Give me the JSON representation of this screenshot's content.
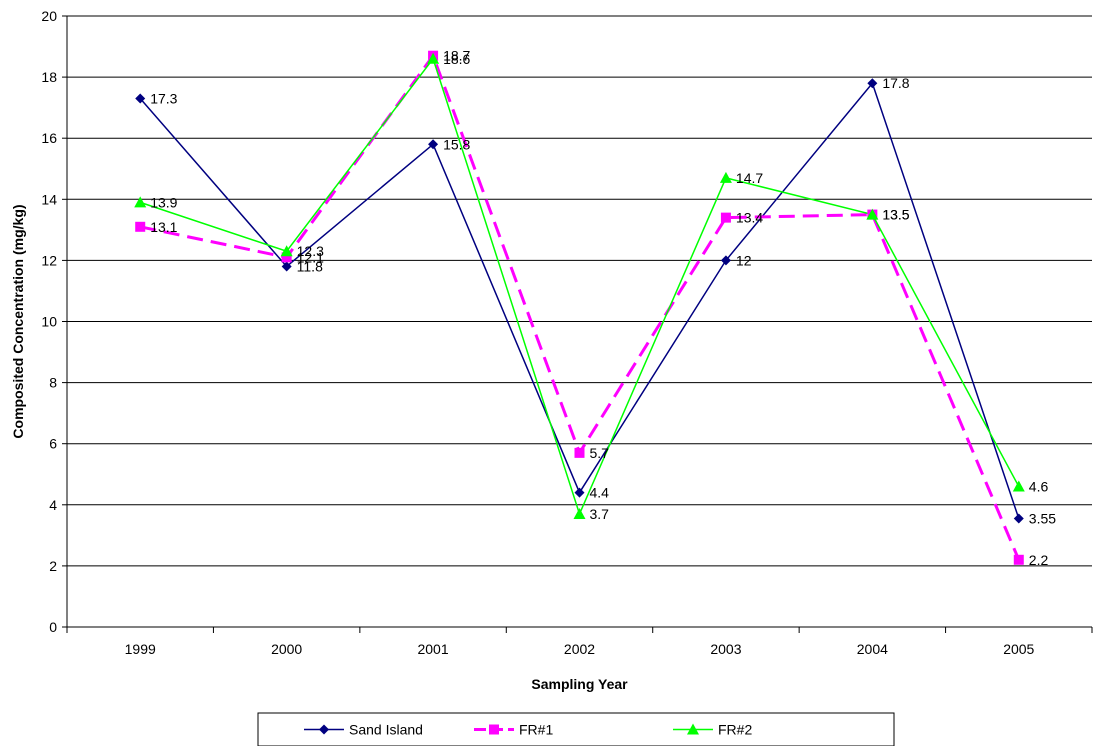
{
  "chart_data": {
    "type": "line",
    "title": "",
    "xlabel": "Sampling Year",
    "ylabel": "Composited Concentration (mg/kg)",
    "categories": [
      "1999",
      "2000",
      "2001",
      "2002",
      "2003",
      "2004",
      "2005"
    ],
    "ylim": [
      0,
      20
    ],
    "yticks": [
      "0",
      "2",
      "4",
      "6",
      "8",
      "10",
      "12",
      "14",
      "16",
      "18",
      "20"
    ],
    "grid": "horizontal",
    "legend_position": "bottom",
    "series": [
      {
        "name": "Sand Island",
        "color": "#000080",
        "marker": "diamond",
        "dash": "solid",
        "values": [
          17.3,
          11.8,
          15.8,
          4.4,
          12,
          17.8,
          3.55
        ],
        "labels": [
          "17.3",
          "11.8",
          "15.8",
          "4.4",
          "12",
          "17.8",
          "3.55"
        ]
      },
      {
        "name": "FR#1",
        "color": "#FF00FF",
        "marker": "square",
        "dash": "dashed",
        "values": [
          13.1,
          12.1,
          18.7,
          5.7,
          13.4,
          13.5,
          2.2
        ],
        "labels": [
          "13.1",
          "12.1",
          "18.7",
          "5.7",
          "13.4",
          "13.5",
          "2.2"
        ]
      },
      {
        "name": "FR#2",
        "color": "#00FF00",
        "marker": "triangle",
        "dash": "solid",
        "values": [
          13.9,
          12.3,
          18.6,
          3.7,
          14.7,
          13.5,
          4.6
        ],
        "labels": [
          "13.9",
          "12.3",
          "18.6",
          "3.7",
          "14.7",
          "13.5",
          "4.6"
        ]
      }
    ]
  }
}
